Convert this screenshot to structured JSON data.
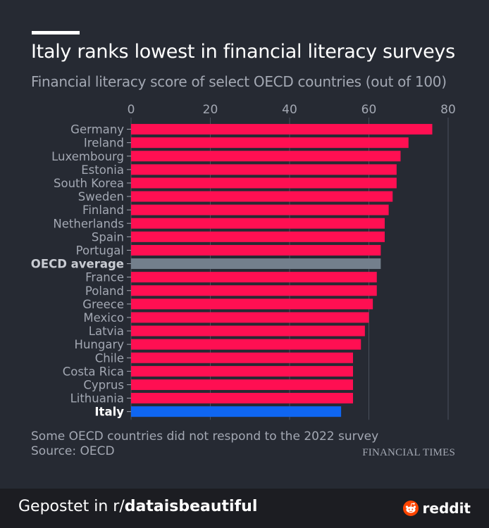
{
  "header": {
    "title": "Italy ranks lowest in financial literacy surveys",
    "subtitle": "Financial literacy score of select OECD countries (out of 100)"
  },
  "notes": {
    "note": "Some OECD countries did not respond to the 2022 survey",
    "source": "Source: OECD",
    "brand": "FINANCIAL TIMES"
  },
  "footer": {
    "posted_prefix": "Gepostet in r/",
    "subreddit": "dataisbeautiful",
    "platform": "reddit"
  },
  "colors": {
    "bar": "#ff0f52",
    "average": "#737f8c",
    "highlight": "#0f66f2",
    "gridline": "#4a505c",
    "label": "#a3a8b3"
  },
  "chart_data": {
    "type": "bar",
    "orientation": "horizontal",
    "title": "Italy ranks lowest in financial literacy surveys",
    "xlabel": "",
    "ylabel": "",
    "xlim": [
      0,
      80
    ],
    "ticks": [
      0,
      20,
      40,
      60,
      80
    ],
    "grid": true,
    "categories": [
      "Germany",
      "Ireland",
      "Luxembourg",
      "Estonia",
      "South Korea",
      "Sweden",
      "Finland",
      "Netherlands",
      "Spain",
      "Portugal",
      "OECD average",
      "France",
      "Poland",
      "Greece",
      "Mexico",
      "Latvia",
      "Hungary",
      "Chile",
      "Costa Rica",
      "Cyprus",
      "Lithuania",
      "Italy"
    ],
    "values": [
      76,
      70,
      68,
      67,
      67,
      66,
      65,
      64,
      64,
      63,
      63,
      62,
      62,
      61,
      60,
      59,
      58,
      56,
      56,
      56,
      56,
      53
    ],
    "highlight": {
      "OECD average": "average",
      "Italy": "highlight"
    }
  }
}
